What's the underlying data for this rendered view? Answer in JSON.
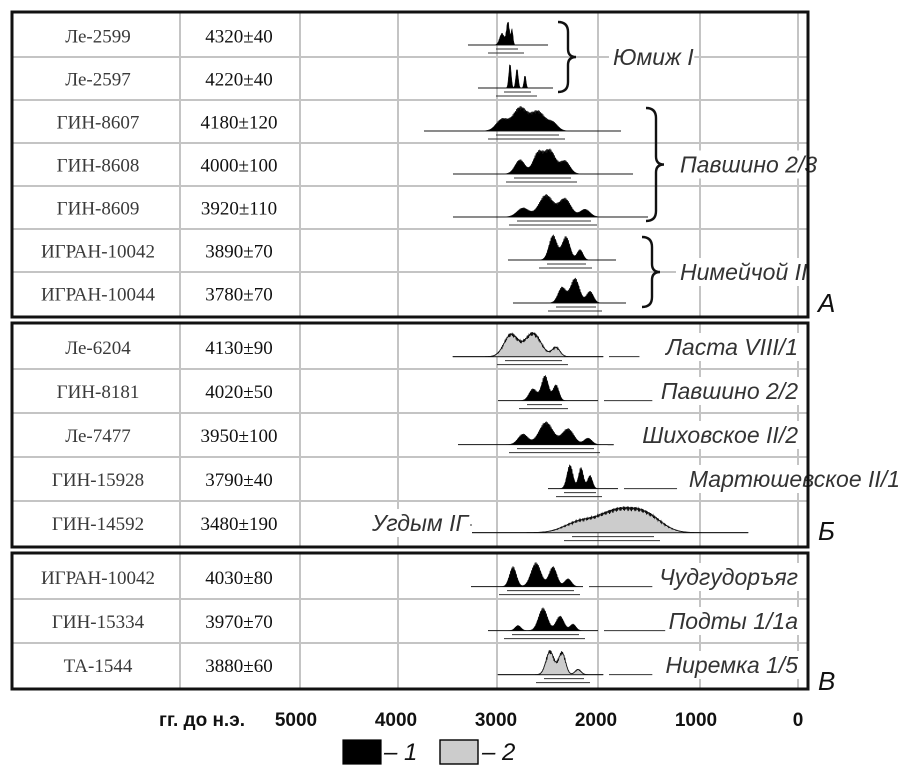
{
  "x_axis": {
    "label": "гг. до н.э.",
    "ticks": [
      {
        "value": 5000,
        "label": "5000"
      },
      {
        "value": 4000,
        "label": "4000"
      },
      {
        "value": 3000,
        "label": "3000"
      },
      {
        "value": 2000,
        "label": "2000"
      },
      {
        "value": 1000,
        "label": "1000"
      },
      {
        "value": 0,
        "label": "0"
      }
    ]
  },
  "legend": [
    {
      "label": "– 1",
      "fill": "#000000"
    },
    {
      "label": "– 2",
      "fill": "#cccccc"
    }
  ],
  "sections": [
    {
      "letter": "А",
      "rows": [
        {
          "code": "Ле-2599",
          "date": "4320±40",
          "fill": "#000000",
          "start": 3300,
          "end": 2500,
          "peaks": [
            [
              2960,
              0.45,
              24
            ],
            [
              2900,
              0.9,
              15
            ],
            [
              2860,
              0.6,
              10
            ]
          ]
        },
        {
          "code": "Ле-2597",
          "date": "4220±40",
          "fill": "#000000",
          "start": 3200,
          "end": 2450,
          "peaks": [
            [
              2880,
              0.95,
              12
            ],
            [
              2810,
              0.75,
              12
            ],
            [
              2730,
              0.5,
              10
            ]
          ]
        },
        {
          "code": "ГИН-8607",
          "date": "4180±120",
          "fill": "#000000",
          "start": 3740,
          "end": 1770,
          "peaks": [
            [
              2960,
              0.45,
              60
            ],
            [
              2780,
              0.9,
              70
            ],
            [
              2600,
              0.75,
              70
            ],
            [
              2450,
              0.3,
              50
            ]
          ]
        },
        {
          "code": "ГИН-8608",
          "date": "4000±100",
          "fill": "#000000",
          "start": 3450,
          "end": 1650,
          "peaks": [
            [
              2780,
              0.55,
              50
            ],
            [
              2600,
              0.8,
              50
            ],
            [
              2480,
              0.9,
              55
            ],
            [
              2330,
              0.5,
              50
            ]
          ]
        },
        {
          "code": "ГИН-8609",
          "date": "3920±110",
          "fill": "#000000",
          "start": 3450,
          "end": 1500,
          "peaks": [
            [
              2750,
              0.35,
              60
            ],
            [
              2520,
              0.85,
              70
            ],
            [
              2330,
              0.7,
              60
            ],
            [
              2130,
              0.3,
              50
            ]
          ]
        },
        {
          "code": "ИГРАН-10042",
          "date": "3890±70",
          "fill": "#000000",
          "start": 2900,
          "end": 1820,
          "peaks": [
            [
              2450,
              0.95,
              40
            ],
            [
              2320,
              0.9,
              40
            ],
            [
              2180,
              0.4,
              30
            ]
          ]
        },
        {
          "code": "ИГРАН-10044",
          "date": "3780±70",
          "fill": "#000000",
          "start": 2850,
          "end": 1720,
          "peaks": [
            [
              2360,
              0.6,
              40
            ],
            [
              2230,
              0.95,
              45
            ],
            [
              2080,
              0.45,
              35
            ]
          ]
        }
      ],
      "groups": [
        {
          "label": "Юмиж I",
          "from": 0,
          "to": 1
        },
        {
          "label": "Павшино 2/3",
          "from": 2,
          "to": 4
        },
        {
          "label": "Нимейчой II",
          "from": 5,
          "to": 6
        }
      ]
    },
    {
      "letter": "Б",
      "rows": [
        {
          "code": "Ле-6204",
          "date": "4130±90",
          "fill": "#cccccc",
          "start": 3450,
          "end": 1950,
          "peaks": [
            [
              2870,
              0.85,
              70
            ],
            [
              2650,
              0.9,
              80
            ],
            [
              2420,
              0.35,
              40
            ]
          ],
          "label": "Ласта VIII/1"
        },
        {
          "code": "ГИН-8181",
          "date": "4020±50",
          "fill": "#000000",
          "start": 3000,
          "end": 2000,
          "peaks": [
            [
              2650,
              0.45,
              40
            ],
            [
              2530,
              0.95,
              35
            ],
            [
              2420,
              0.6,
              30
            ]
          ],
          "label": "Павшино 2/2"
        },
        {
          "code": "Ле-7477",
          "date": "3950±100",
          "fill": "#000000",
          "start": 3400,
          "end": 1600,
          "peaks": [
            [
              2750,
              0.4,
              50
            ],
            [
              2520,
              0.85,
              70
            ],
            [
              2300,
              0.6,
              60
            ],
            [
              2100,
              0.25,
              40
            ]
          ],
          "label": "Шиховское II/2"
        },
        {
          "code": "ГИН-15928",
          "date": "3790±40",
          "fill": "#000000",
          "start": 2500,
          "end": 1800,
          "peaks": [
            [
              2280,
              0.9,
              30
            ],
            [
              2170,
              0.8,
              25
            ],
            [
              2080,
              0.5,
              25
            ]
          ],
          "label": "Мартюшевское II/1"
        },
        {
          "code": "ГИН-14592",
          "date": "3480±190",
          "fill": "#cccccc",
          "start": 3300,
          "end": 500,
          "peaks": [
            [
              2200,
              0.35,
              150
            ],
            [
              1800,
              0.85,
              200
            ],
            [
              1500,
              0.5,
              150
            ]
          ],
          "label": "Угдым IГ"
        }
      ]
    },
    {
      "letter": "В",
      "rows": [
        {
          "code": "ИГРАН-10042",
          "date": "4030±80",
          "fill": "#000000",
          "start": 3270,
          "end": 2150,
          "peaks": [
            [
              2850,
              0.75,
              35
            ],
            [
              2620,
              0.9,
              50
            ],
            [
              2450,
              0.75,
              40
            ],
            [
              2300,
              0.3,
              35
            ]
          ],
          "label": "Чудгудоръяг"
        },
        {
          "code": "ГИН-15334",
          "date": "3970±70",
          "fill": "#000000",
          "start": 3100,
          "end": 2000,
          "peaks": [
            [
              2800,
              0.2,
              30
            ],
            [
              2550,
              0.85,
              45
            ],
            [
              2380,
              0.55,
              40
            ],
            [
              2250,
              0.25,
              30
            ]
          ],
          "label": "Подты 1/1а"
        },
        {
          "code": "ТА-1544",
          "date": "3880±60",
          "fill": "#cccccc",
          "start": 3000,
          "end": 1950,
          "peaks": [
            [
              2480,
              0.9,
              40
            ],
            [
              2360,
              0.85,
              35
            ],
            [
              2200,
              0.2,
              30
            ]
          ],
          "label": "Ниремка 1/5"
        }
      ]
    }
  ]
}
